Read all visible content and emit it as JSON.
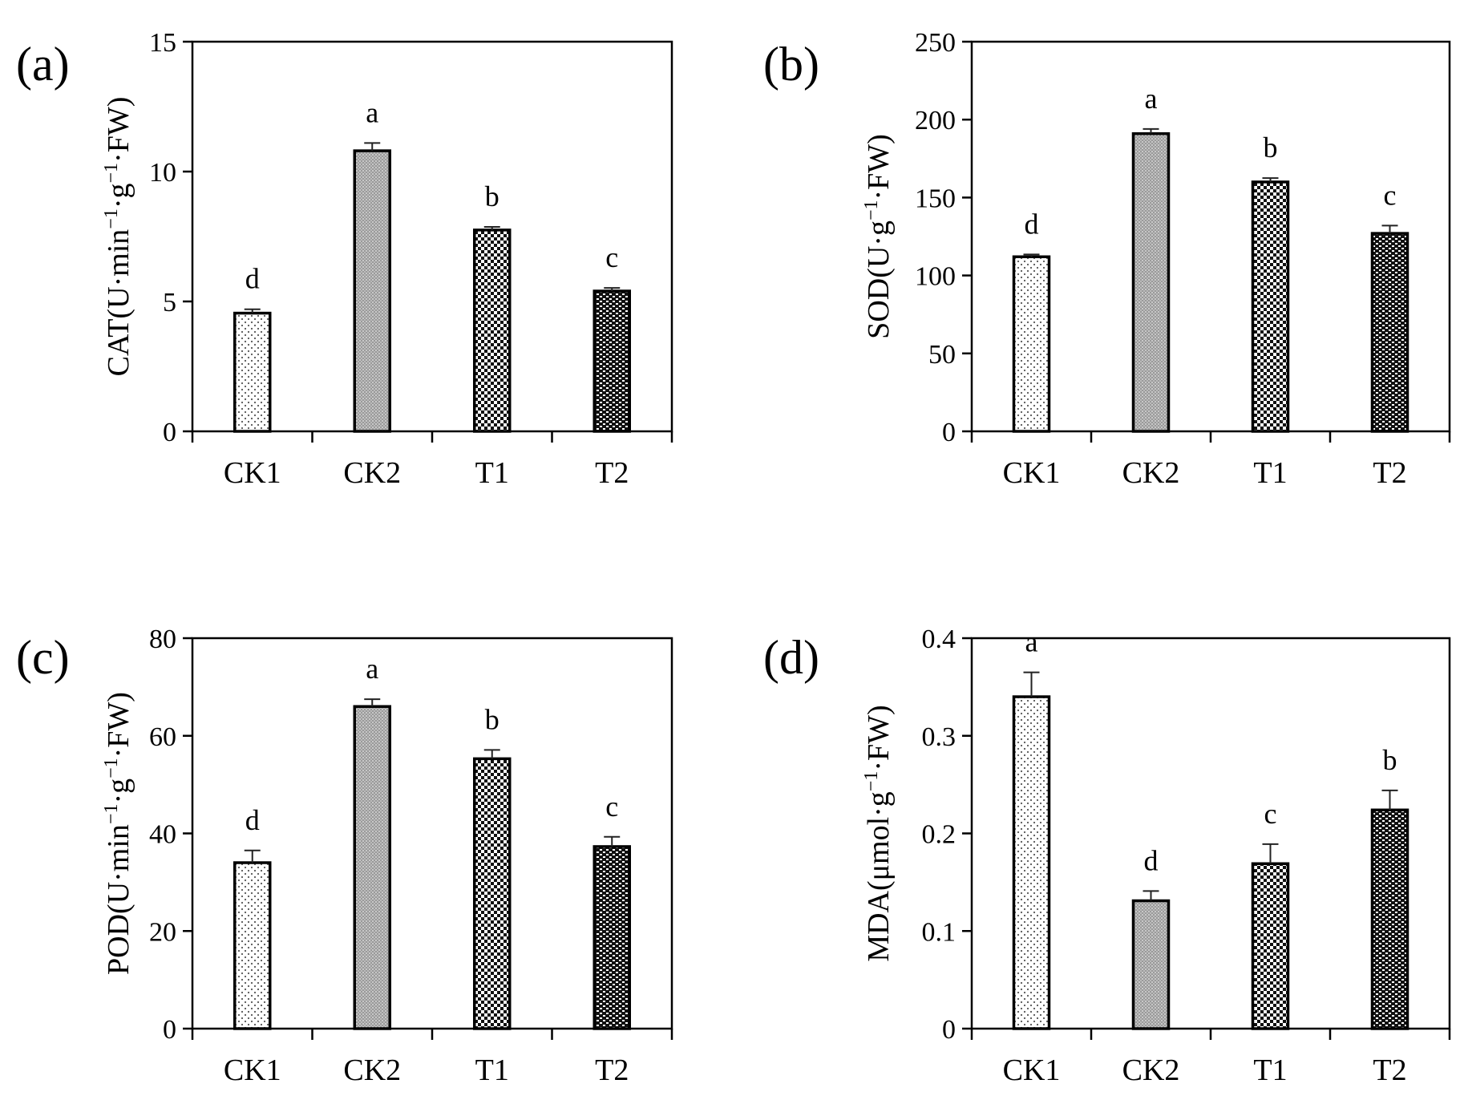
{
  "figure": {
    "background": "#ffffff"
  },
  "chart_data": [
    {
      "type": "bar",
      "panel_label": "(a)",
      "ylabel_main": "CAT(U·min",
      "ylabel_sup1": "−1",
      "ylabel_mid": "·g",
      "ylabel_sup2": "−1",
      "ylabel_end": "·FW)",
      "categories": [
        "CK1",
        "CK2",
        "T1",
        "T2"
      ],
      "values": [
        4.55,
        10.8,
        7.75,
        5.4
      ],
      "errors": [
        0.15,
        0.3,
        0.12,
        0.12
      ],
      "significance": [
        "d",
        "a",
        "b",
        "c"
      ],
      "patterns": [
        "dots-sparse",
        "dots-dense",
        "checker",
        "checker-dense"
      ],
      "ylim": [
        0,
        15
      ],
      "yticks": [
        0,
        5,
        10,
        15
      ]
    },
    {
      "type": "bar",
      "panel_label": "(b)",
      "ylabel_main": "SOD(U·g",
      "ylabel_sup1": "−1",
      "ylabel_mid": "·FW)",
      "ylabel_sup2": "",
      "ylabel_end": "",
      "categories": [
        "CK1",
        "CK2",
        "T1",
        "T2"
      ],
      "values": [
        112,
        191,
        160,
        127
      ],
      "errors": [
        1.5,
        3,
        2.5,
        5
      ],
      "significance": [
        "d",
        "a",
        "b",
        "c"
      ],
      "patterns": [
        "dots-sparse",
        "dots-dense",
        "checker",
        "checker-dense"
      ],
      "ylim": [
        0,
        250
      ],
      "yticks": [
        0,
        50,
        100,
        150,
        200,
        250
      ]
    },
    {
      "type": "bar",
      "panel_label": "(c)",
      "ylabel_main": "POD(U·min",
      "ylabel_sup1": "−1",
      "ylabel_mid": "·g",
      "ylabel_sup2": "−1",
      "ylabel_end": "·FW)",
      "categories": [
        "CK1",
        "CK2",
        "T1",
        "T2"
      ],
      "values": [
        34,
        66,
        55.3,
        37.3
      ],
      "errors": [
        2.5,
        1.5,
        1.8,
        2
      ],
      "significance": [
        "d",
        "a",
        "b",
        "c"
      ],
      "patterns": [
        "dots-sparse",
        "dots-dense",
        "checker",
        "checker-dense"
      ],
      "ylim": [
        0,
        80
      ],
      "yticks": [
        0,
        20,
        40,
        60,
        80
      ]
    },
    {
      "type": "bar",
      "panel_label": "(d)",
      "ylabel_main": "MDA(μmol·g",
      "ylabel_sup1": "−1",
      "ylabel_mid": "·FW)",
      "ylabel_sup2": "",
      "ylabel_end": "",
      "categories": [
        "CK1",
        "CK2",
        "T1",
        "T2"
      ],
      "values": [
        0.34,
        0.131,
        0.169,
        0.224
      ],
      "errors": [
        0.025,
        0.01,
        0.02,
        0.02
      ],
      "significance": [
        "a",
        "d",
        "c",
        "b"
      ],
      "patterns": [
        "dots-sparse",
        "dots-dense",
        "checker",
        "checker-dense"
      ],
      "ylim": [
        0,
        0.4
      ],
      "yticks": [
        0,
        0.1,
        0.2,
        0.3,
        0.4
      ]
    }
  ]
}
